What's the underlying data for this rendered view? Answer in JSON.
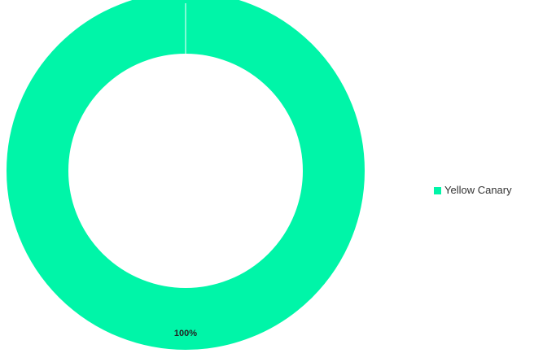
{
  "chart_data": {
    "type": "pie",
    "variant": "donut",
    "categories": [
      "Yellow Canary"
    ],
    "values": [
      100
    ],
    "data_labels": [
      "100%"
    ],
    "colors": [
      "#00f5a8"
    ],
    "legend": {
      "placement": "right",
      "items": [
        {
          "label": "Yellow Canary",
          "color": "#00f5a8"
        }
      ]
    }
  }
}
